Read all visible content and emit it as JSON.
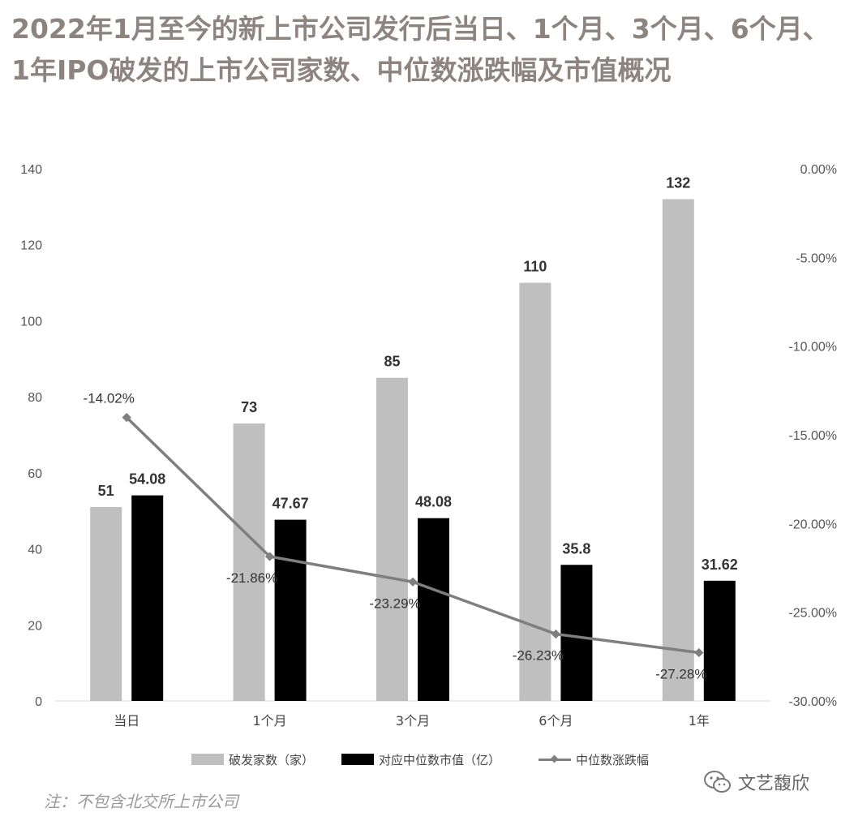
{
  "title": "2022年1月至今的新上市公司发行后当日、1个月、3个月、6个月、1年IPO破发的上市公司家数、中位数涨跌幅及市值概况",
  "note": "注：不包含北交所上市公司",
  "brand": {
    "name": "文艺馥欣",
    "icon": "wechat-icon"
  },
  "colors": {
    "series1": "#bfbfbf",
    "series2": "#000000",
    "series3": "#7f7f7f",
    "title": "#8d8480"
  },
  "chart_data": {
    "type": "bar",
    "categories": [
      "当日",
      "1个月",
      "3个月",
      "6个月",
      "1年"
    ],
    "series": [
      {
        "name": "破发家数（家）",
        "type": "bar",
        "axis": "left",
        "values": [
          51,
          73,
          85,
          110,
          132
        ],
        "labels": [
          "51",
          "73",
          "85",
          "110",
          "132"
        ]
      },
      {
        "name": "对应中位数市值（亿）",
        "type": "bar",
        "axis": "left",
        "values": [
          54.08,
          47.67,
          48.08,
          35.8,
          31.62
        ],
        "labels": [
          "54.08",
          "47.67",
          "48.08",
          "35.8",
          "31.62"
        ]
      },
      {
        "name": "中位数涨跌幅",
        "type": "line",
        "axis": "right",
        "values": [
          -14.02,
          -21.86,
          -23.29,
          -26.23,
          -27.28
        ],
        "labels": [
          "-14.02%",
          "-21.86%",
          "-23.29%",
          "-26.23%",
          "-27.28%"
        ]
      }
    ],
    "y_left": {
      "min": 0,
      "max": 140,
      "ticks": [
        "0",
        "20",
        "40",
        "60",
        "80",
        "100",
        "120",
        "140"
      ]
    },
    "y_right": {
      "min": -30,
      "max": 0,
      "ticks": [
        "0.00%",
        "-5.00%",
        "-10.00%",
        "-15.00%",
        "-20.00%",
        "-25.00%",
        "-30.00%"
      ]
    },
    "grid": false,
    "legend": "bottom"
  }
}
